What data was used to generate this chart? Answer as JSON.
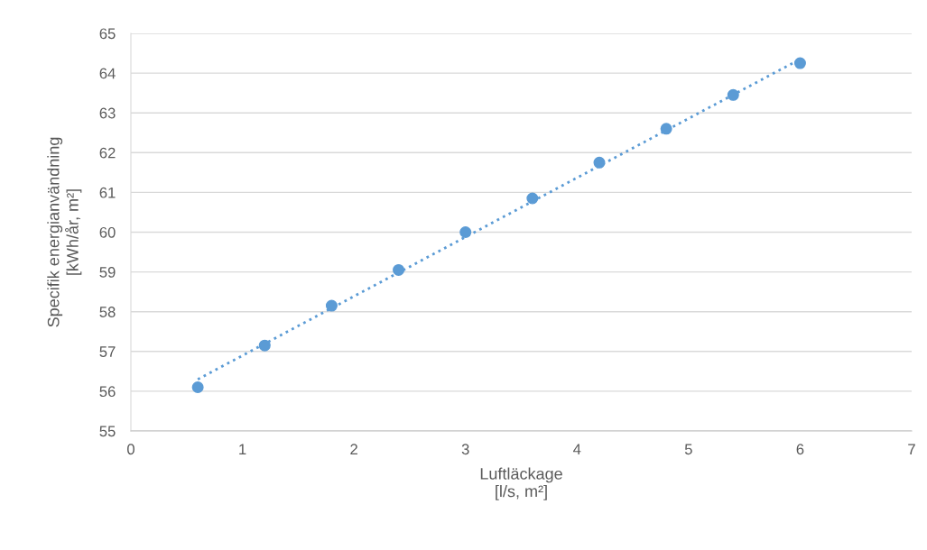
{
  "chart_data": {
    "type": "scatter",
    "xlabel": "Luftläckage\n[l/s, m²]",
    "ylabel": "Specifik energianvändning\n[kWh/år, m²]",
    "series": [
      {
        "color": "#5b9bd5",
        "x": [
          0.6,
          1.2,
          1.8,
          2.4,
          3.0,
          3.6,
          4.2,
          4.8,
          5.4,
          6.0
        ],
        "values": [
          56.1,
          57.15,
          58.15,
          59.05,
          60.0,
          60.85,
          61.75,
          62.6,
          63.45,
          64.25
        ],
        "marker": "circle"
      },
      {
        "type": "line",
        "color": "#5b9bd5",
        "x": [
          0.6,
          6.0
        ],
        "values": [
          56.3,
          64.35
        ],
        "line_style": "dotted",
        "marker": "none"
      }
    ],
    "xlim": [
      0,
      7
    ],
    "xticks": [
      0,
      1,
      2,
      3,
      4,
      5,
      6,
      7
    ],
    "ylim": [
      55,
      65
    ],
    "yticks": [
      55,
      56,
      57,
      58,
      59,
      60,
      61,
      62,
      63,
      64,
      65
    ],
    "grid": "y",
    "legend": false
  }
}
